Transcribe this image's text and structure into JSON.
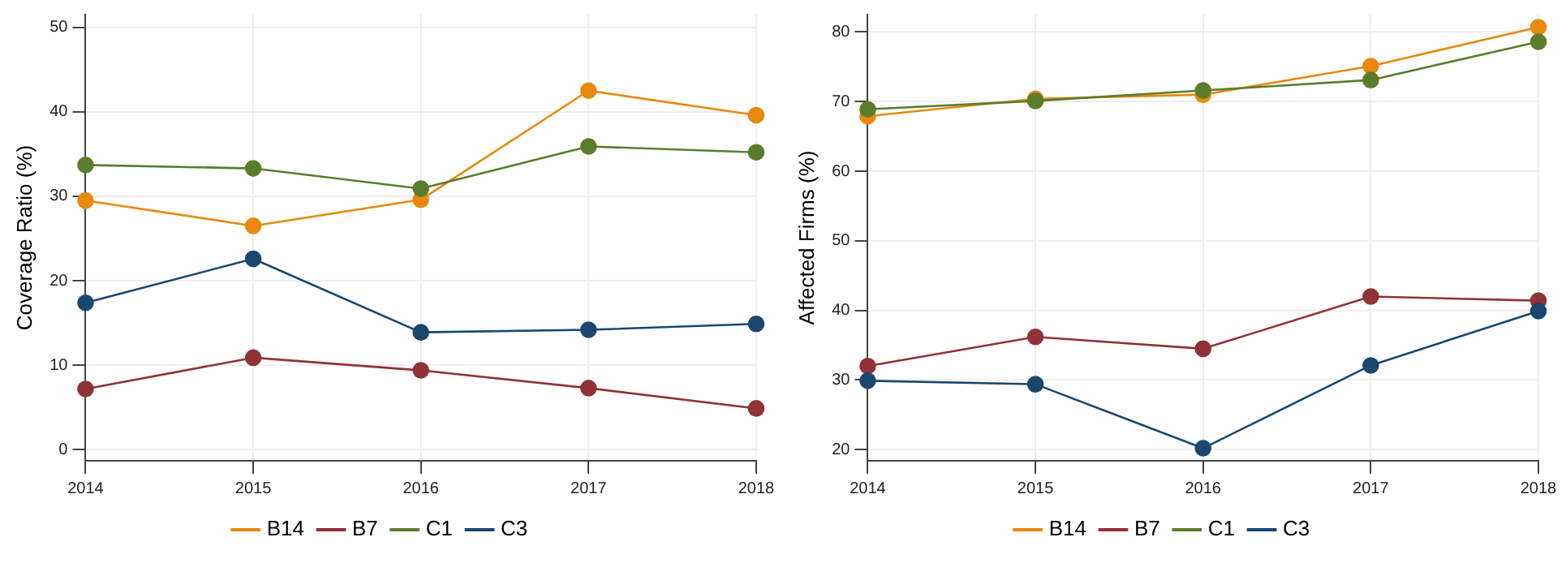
{
  "chart_data": [
    {
      "type": "line",
      "ylabel": "Coverage Ratio (%)",
      "categories": [
        "2014",
        "2015",
        "2016",
        "2017",
        "2018"
      ],
      "ylim": [
        -1.3,
        51.5
      ],
      "yticks": [
        0,
        10,
        20,
        30,
        40,
        50
      ],
      "grid": true,
      "legend": "bottom",
      "marker": "circle",
      "line_style": "solid",
      "series": [
        {
          "name": "B14",
          "color": "#e8890c",
          "values": [
            29.5,
            26.5,
            29.6,
            42.5,
            39.6
          ]
        },
        {
          "name": "B7",
          "color": "#903236",
          "values": [
            7.2,
            10.9,
            9.4,
            7.3,
            4.9
          ]
        },
        {
          "name": "C1",
          "color": "#5a7d2c",
          "values": [
            33.7,
            33.3,
            30.9,
            35.9,
            35.2
          ]
        },
        {
          "name": "C3",
          "color": "#1a476f",
          "values": [
            17.4,
            22.6,
            13.9,
            14.2,
            14.9
          ]
        }
      ]
    },
    {
      "type": "line",
      "ylabel": "Affected Firms (%)",
      "categories": [
        "2014",
        "2015",
        "2016",
        "2017",
        "2018"
      ],
      "ylim": [
        18.4,
        82.5
      ],
      "yticks": [
        20,
        30,
        40,
        50,
        60,
        70,
        80
      ],
      "grid": true,
      "legend": "bottom",
      "marker": "circle",
      "line_style": "solid",
      "series": [
        {
          "name": "B14",
          "color": "#e8890c",
          "values": [
            67.9,
            70.4,
            71.0,
            75.1,
            80.7
          ]
        },
        {
          "name": "B7",
          "color": "#903236",
          "values": [
            32.0,
            36.2,
            34.5,
            42.0,
            41.4
          ]
        },
        {
          "name": "C1",
          "color": "#5a7d2c",
          "values": [
            68.9,
            70.1,
            71.6,
            73.1,
            78.6
          ]
        },
        {
          "name": "C3",
          "color": "#1a476f",
          "values": [
            29.9,
            29.4,
            20.2,
            32.1,
            39.9
          ]
        }
      ]
    }
  ]
}
